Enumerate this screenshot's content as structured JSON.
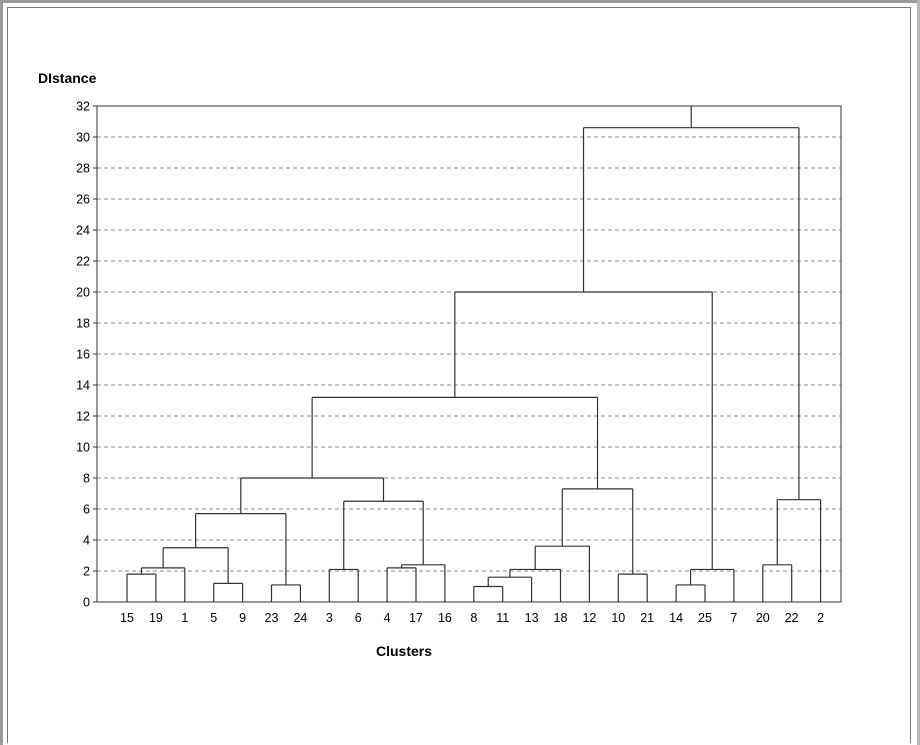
{
  "chart_data": {
    "type": "dendrogram",
    "ylabel": "DIstance",
    "xlabel": "Clusters",
    "ylim": [
      0,
      32
    ],
    "yticks": [
      0,
      2,
      4,
      6,
      8,
      10,
      12,
      14,
      16,
      18,
      20,
      22,
      24,
      26,
      28,
      30,
      32
    ],
    "grid": true,
    "leaf_order": [
      "15",
      "19",
      "1",
      "5",
      "9",
      "23",
      "24",
      "3",
      "6",
      "4",
      "17",
      "16",
      "8",
      "11",
      "13",
      "18",
      "12",
      "10",
      "21",
      "14",
      "25",
      "7",
      "20",
      "22",
      "2"
    ],
    "merges": [
      {
        "left": "15",
        "right": "19",
        "height": 1.8
      },
      {
        "left": "15+19",
        "right": "1",
        "height": 2.2
      },
      {
        "left": "5",
        "right": "9",
        "height": 1.2
      },
      {
        "left": "15+19+1",
        "right": "5+9",
        "height": 3.5
      },
      {
        "left": "23",
        "right": "24",
        "height": 1.1
      },
      {
        "left": "15+19+1+5+9",
        "right": "23+24",
        "height": 5.7
      },
      {
        "left": "3",
        "right": "6",
        "height": 2.1
      },
      {
        "left": "4",
        "right": "17",
        "height": 2.2
      },
      {
        "left": "4+17",
        "right": "16",
        "height": 2.4
      },
      {
        "left": "3+6",
        "right": "4+17+16",
        "height": 6.5
      },
      {
        "left": "group-A",
        "right": "group-B",
        "height": 8.0
      },
      {
        "left": "8",
        "right": "11",
        "height": 1.0
      },
      {
        "left": "8+11",
        "right": "13",
        "height": 1.6
      },
      {
        "left": "8+11+13",
        "right": "18",
        "height": 2.1
      },
      {
        "left": "8+11+13+18",
        "right": "12",
        "height": 3.6
      },
      {
        "left": "10",
        "right": "21",
        "height": 1.8
      },
      {
        "left": "8+11+13+18+12",
        "right": "10+21",
        "height": 7.3
      },
      {
        "left": "left-block",
        "right": "mid-block",
        "height": 13.2
      },
      {
        "left": "14",
        "right": "25",
        "height": 1.1
      },
      {
        "left": "14+25",
        "right": "7",
        "height": 2.1
      },
      {
        "left": "main",
        "right": "14+25+7",
        "height": 20.0
      },
      {
        "left": "20",
        "right": "22",
        "height": 2.4
      },
      {
        "left": "20+22",
        "right": "2",
        "height": 6.6
      },
      {
        "left": "main-all",
        "right": "20+22+2",
        "height": 30.6
      },
      {
        "left": "root",
        "right": "top",
        "height": 32
      }
    ]
  }
}
